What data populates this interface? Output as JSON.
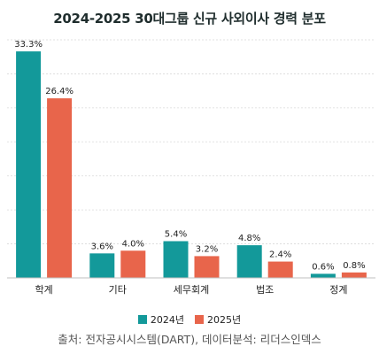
{
  "chart_data": {
    "type": "bar",
    "title": "2024-2025 30대그룹 신규 사외이사 경력 분포",
    "categories": [
      "학계",
      "기타",
      "세무회계",
      "법조",
      "정계"
    ],
    "series": [
      {
        "name": "2024년",
        "color": "#13999a",
        "values": [
          33.3,
          3.6,
          5.4,
          4.8,
          0.6
        ],
        "labels": [
          "33.3%",
          "3.6%",
          "5.4%",
          "4.8%",
          "0.6%"
        ]
      },
      {
        "name": "2025년",
        "color": "#e8654b",
        "values": [
          26.4,
          4.0,
          3.2,
          2.4,
          0.8
        ],
        "labels": [
          "26.4%",
          "4.0%",
          "3.2%",
          "2.4%",
          "0.8%"
        ]
      }
    ],
    "ylim": [
      0,
      35
    ],
    "grid": true,
    "legend_position": "bottom",
    "source": "출처: 전자공시시스템(DART), 데이터분석: 리더스인덱스"
  }
}
